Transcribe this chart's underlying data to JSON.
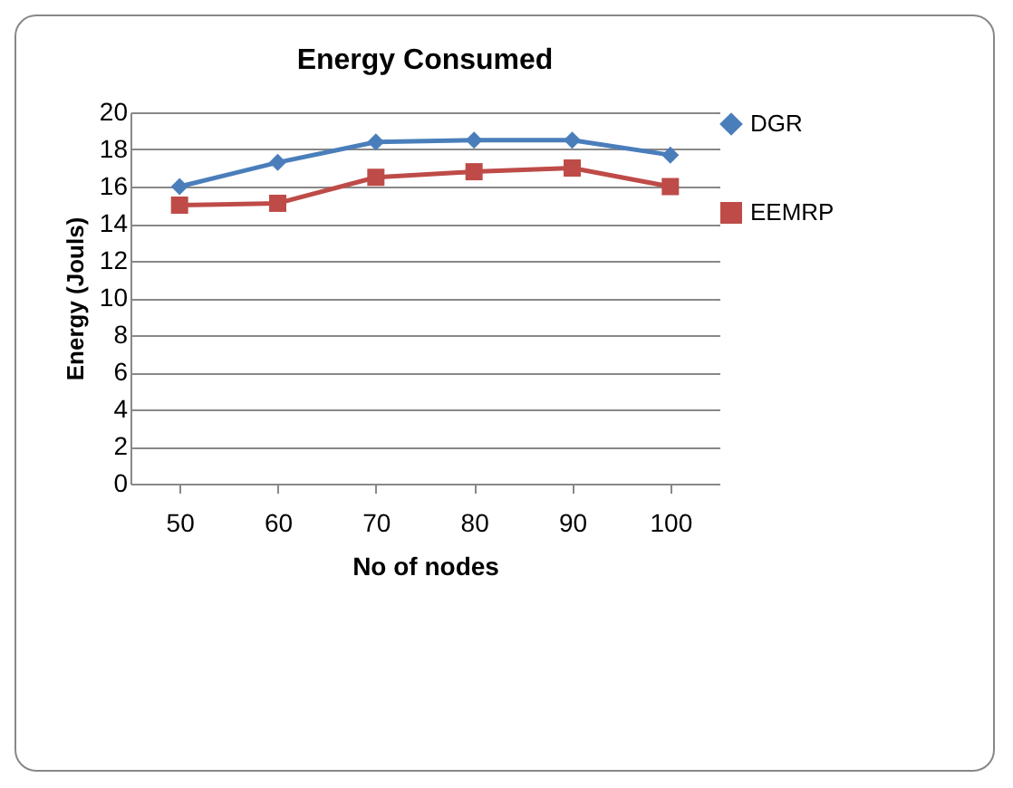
{
  "chart_data": {
    "type": "line",
    "title": "Energy Consumed",
    "xlabel": "No of nodes",
    "ylabel": "Energy (Jouls)",
    "categories": [
      "50",
      "60",
      "70",
      "80",
      "90",
      "100"
    ],
    "series": [
      {
        "name": "DGR",
        "color": "#4a7ebb",
        "marker": "diamond",
        "values": [
          16,
          17.3,
          18.4,
          18.5,
          18.5,
          17.7
        ]
      },
      {
        "name": "EEMRP",
        "color": "#be4b48",
        "marker": "square",
        "values": [
          15,
          15.1,
          16.5,
          16.8,
          17,
          16
        ]
      }
    ],
    "ylim": [
      0,
      20
    ],
    "yticks": [
      0,
      2,
      4,
      6,
      8,
      10,
      12,
      14,
      16,
      18,
      20
    ],
    "grid": "y",
    "legend": "right"
  }
}
